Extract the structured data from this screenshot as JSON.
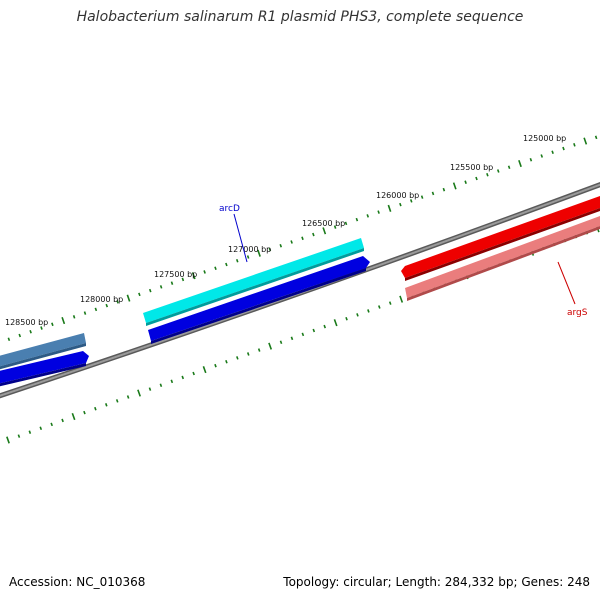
{
  "title": "Halobacterium salinarum R1 plasmid PHS3, complete sequence",
  "footer": {
    "accession": "Accession: NC_010368",
    "summary": "Topology: circular; Length: 284,332 bp; Genes: 248"
  },
  "ruler": {
    "labels": [
      "125000 bp",
      "125500 bp",
      "126000 bp",
      "126500 bp",
      "127000 bp",
      "127500 bp",
      "128000 bp",
      "128500 bp"
    ],
    "tick_color": "#1a7a1a"
  },
  "genes": [
    {
      "name": "arcD",
      "color": "#0000cc"
    },
    {
      "name": "argS",
      "color": "#cc0000"
    }
  ],
  "colors": {
    "backbone": "#7a7a7a",
    "cds_cyan": "#00e5e5",
    "cds_blue": "#0000e0",
    "cds_steel": "#4a7fb0",
    "cds_red": "#ee0000",
    "cds_pink": "#ea7d7d"
  }
}
